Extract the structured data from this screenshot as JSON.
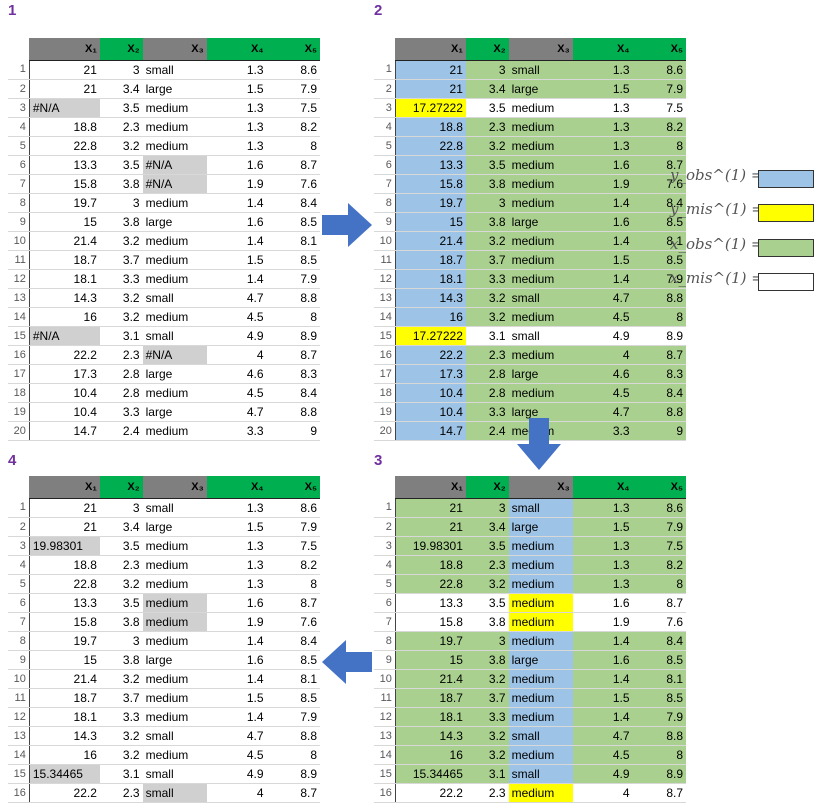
{
  "panels": [
    {
      "number": "1"
    },
    {
      "number": "2"
    },
    {
      "number": "3"
    },
    {
      "number": "4"
    }
  ],
  "columns": [
    "X₁",
    "X₂",
    "X₃",
    "X₄",
    "X₅"
  ],
  "colors": {
    "header_gray": "#7f7f7f",
    "header_green": "#00b050",
    "observed_y": "#9dc3e6",
    "missing_y": "#ffff00",
    "observed_x": "#a9d08e",
    "missing_x": "#ffffff",
    "na_fill": "#d0d0d0",
    "arrow": "#4472c4",
    "panel_number": "#7030a0"
  },
  "legend": [
    {
      "label": "y_obs^(1) =",
      "color": "#9dc3e6"
    },
    {
      "label": "y_mis^(1) =",
      "color": "#ffff00"
    },
    {
      "label": "x_obs^(1) =",
      "color": "#a9d08e"
    },
    {
      "label": "x_mis^(1) =",
      "color": "#ffffff"
    }
  ],
  "arrows": [
    {
      "direction": "right",
      "icon": "arrow-right-icon"
    },
    {
      "direction": "down",
      "icon": "arrow-down-icon"
    },
    {
      "direction": "left",
      "icon": "arrow-left-icon"
    }
  ],
  "table1_rows": [
    [
      "1",
      "21",
      "3",
      "small",
      "1.3",
      "8.6"
    ],
    [
      "2",
      "21",
      "3.4",
      "large",
      "1.5",
      "7.9"
    ],
    [
      "3",
      "#N/A",
      "3.5",
      "medium",
      "1.3",
      "7.5"
    ],
    [
      "4",
      "18.8",
      "2.3",
      "medium",
      "1.3",
      "8.2"
    ],
    [
      "5",
      "22.8",
      "3.2",
      "medium",
      "1.3",
      "8"
    ],
    [
      "6",
      "13.3",
      "3.5",
      "#N/A",
      "1.6",
      "8.7"
    ],
    [
      "7",
      "15.8",
      "3.8",
      "#N/A",
      "1.9",
      "7.6"
    ],
    [
      "8",
      "19.7",
      "3",
      "medium",
      "1.4",
      "8.4"
    ],
    [
      "9",
      "15",
      "3.8",
      "large",
      "1.6",
      "8.5"
    ],
    [
      "10",
      "21.4",
      "3.2",
      "medium",
      "1.4",
      "8.1"
    ],
    [
      "11",
      "18.7",
      "3.7",
      "medium",
      "1.5",
      "8.5"
    ],
    [
      "12",
      "18.1",
      "3.3",
      "medium",
      "1.4",
      "7.9"
    ],
    [
      "13",
      "14.3",
      "3.2",
      "small",
      "4.7",
      "8.8"
    ],
    [
      "14",
      "16",
      "3.2",
      "medium",
      "4.5",
      "8"
    ],
    [
      "15",
      "#N/A",
      "3.1",
      "small",
      "4.9",
      "8.9"
    ],
    [
      "16",
      "22.2",
      "2.3",
      "#N/A",
      "4",
      "8.7"
    ],
    [
      "17",
      "17.3",
      "2.8",
      "large",
      "4.6",
      "8.3"
    ],
    [
      "18",
      "10.4",
      "2.8",
      "medium",
      "4.5",
      "8.4"
    ],
    [
      "19",
      "10.4",
      "3.3",
      "large",
      "4.7",
      "8.8"
    ],
    [
      "20",
      "14.7",
      "2.4",
      "medium",
      "3.3",
      "9"
    ]
  ],
  "table2_rows": [
    [
      "1",
      "21",
      "3",
      "small",
      "1.3",
      "8.6"
    ],
    [
      "2",
      "21",
      "3.4",
      "large",
      "1.5",
      "7.9"
    ],
    [
      "3",
      "17.27222",
      "3.5",
      "medium",
      "1.3",
      "7.5"
    ],
    [
      "4",
      "18.8",
      "2.3",
      "medium",
      "1.3",
      "8.2"
    ],
    [
      "5",
      "22.8",
      "3.2",
      "medium",
      "1.3",
      "8"
    ],
    [
      "6",
      "13.3",
      "3.5",
      "medium",
      "1.6",
      "8.7"
    ],
    [
      "7",
      "15.8",
      "3.8",
      "medium",
      "1.9",
      "7.6"
    ],
    [
      "8",
      "19.7",
      "3",
      "medium",
      "1.4",
      "8.4"
    ],
    [
      "9",
      "15",
      "3.8",
      "large",
      "1.6",
      "8.5"
    ],
    [
      "10",
      "21.4",
      "3.2",
      "medium",
      "1.4",
      "8.1"
    ],
    [
      "11",
      "18.7",
      "3.7",
      "medium",
      "1.5",
      "8.5"
    ],
    [
      "12",
      "18.1",
      "3.3",
      "medium",
      "1.4",
      "7.9"
    ],
    [
      "13",
      "14.3",
      "3.2",
      "small",
      "4.7",
      "8.8"
    ],
    [
      "14",
      "16",
      "3.2",
      "medium",
      "4.5",
      "8"
    ],
    [
      "15",
      "17.27222",
      "3.1",
      "small",
      "4.9",
      "8.9"
    ],
    [
      "16",
      "22.2",
      "2.3",
      "medium",
      "4",
      "8.7"
    ],
    [
      "17",
      "17.3",
      "2.8",
      "large",
      "4.6",
      "8.3"
    ],
    [
      "18",
      "10.4",
      "2.8",
      "medium",
      "4.5",
      "8.4"
    ],
    [
      "19",
      "10.4",
      "3.3",
      "large",
      "4.7",
      "8.8"
    ],
    [
      "20",
      "14.7",
      "2.4",
      "medium",
      "3.3",
      "9"
    ]
  ],
  "table3_rows": [
    [
      "1",
      "21",
      "3",
      "small",
      "1.3",
      "8.6"
    ],
    [
      "2",
      "21",
      "3.4",
      "large",
      "1.5",
      "7.9"
    ],
    [
      "3",
      "19.98301",
      "3.5",
      "medium",
      "1.3",
      "7.5"
    ],
    [
      "4",
      "18.8",
      "2.3",
      "medium",
      "1.3",
      "8.2"
    ],
    [
      "5",
      "22.8",
      "3.2",
      "medium",
      "1.3",
      "8"
    ],
    [
      "6",
      "13.3",
      "3.5",
      "medium",
      "1.6",
      "8.7"
    ],
    [
      "7",
      "15.8",
      "3.8",
      "medium",
      "1.9",
      "7.6"
    ],
    [
      "8",
      "19.7",
      "3",
      "medium",
      "1.4",
      "8.4"
    ],
    [
      "9",
      "15",
      "3.8",
      "large",
      "1.6",
      "8.5"
    ],
    [
      "10",
      "21.4",
      "3.2",
      "medium",
      "1.4",
      "8.1"
    ],
    [
      "11",
      "18.7",
      "3.7",
      "medium",
      "1.5",
      "8.5"
    ],
    [
      "12",
      "18.1",
      "3.3",
      "medium",
      "1.4",
      "7.9"
    ],
    [
      "13",
      "14.3",
      "3.2",
      "small",
      "4.7",
      "8.8"
    ],
    [
      "14",
      "16",
      "3.2",
      "medium",
      "4.5",
      "8"
    ],
    [
      "15",
      "15.34465",
      "3.1",
      "small",
      "4.9",
      "8.9"
    ],
    [
      "16",
      "22.2",
      "2.3",
      "medium",
      "4",
      "8.7"
    ]
  ],
  "table4_rows": [
    [
      "1",
      "21",
      "3",
      "small",
      "1.3",
      "8.6"
    ],
    [
      "2",
      "21",
      "3.4",
      "large",
      "1.5",
      "7.9"
    ],
    [
      "3",
      "19.98301",
      "3.5",
      "medium",
      "1.3",
      "7.5"
    ],
    [
      "4",
      "18.8",
      "2.3",
      "medium",
      "1.3",
      "8.2"
    ],
    [
      "5",
      "22.8",
      "3.2",
      "medium",
      "1.3",
      "8"
    ],
    [
      "6",
      "13.3",
      "3.5",
      "medium",
      "1.6",
      "8.7"
    ],
    [
      "7",
      "15.8",
      "3.8",
      "medium",
      "1.9",
      "7.6"
    ],
    [
      "8",
      "19.7",
      "3",
      "medium",
      "1.4",
      "8.4"
    ],
    [
      "9",
      "15",
      "3.8",
      "large",
      "1.6",
      "8.5"
    ],
    [
      "10",
      "21.4",
      "3.2",
      "medium",
      "1.4",
      "8.1"
    ],
    [
      "11",
      "18.7",
      "3.7",
      "medium",
      "1.5",
      "8.5"
    ],
    [
      "12",
      "18.1",
      "3.3",
      "medium",
      "1.4",
      "7.9"
    ],
    [
      "13",
      "14.3",
      "3.2",
      "small",
      "4.7",
      "8.8"
    ],
    [
      "14",
      "16",
      "3.2",
      "medium",
      "4.5",
      "8"
    ],
    [
      "15",
      "15.34465",
      "3.1",
      "small",
      "4.9",
      "8.9"
    ],
    [
      "16",
      "22.2",
      "2.3",
      "small",
      "4",
      "8.7"
    ]
  ]
}
